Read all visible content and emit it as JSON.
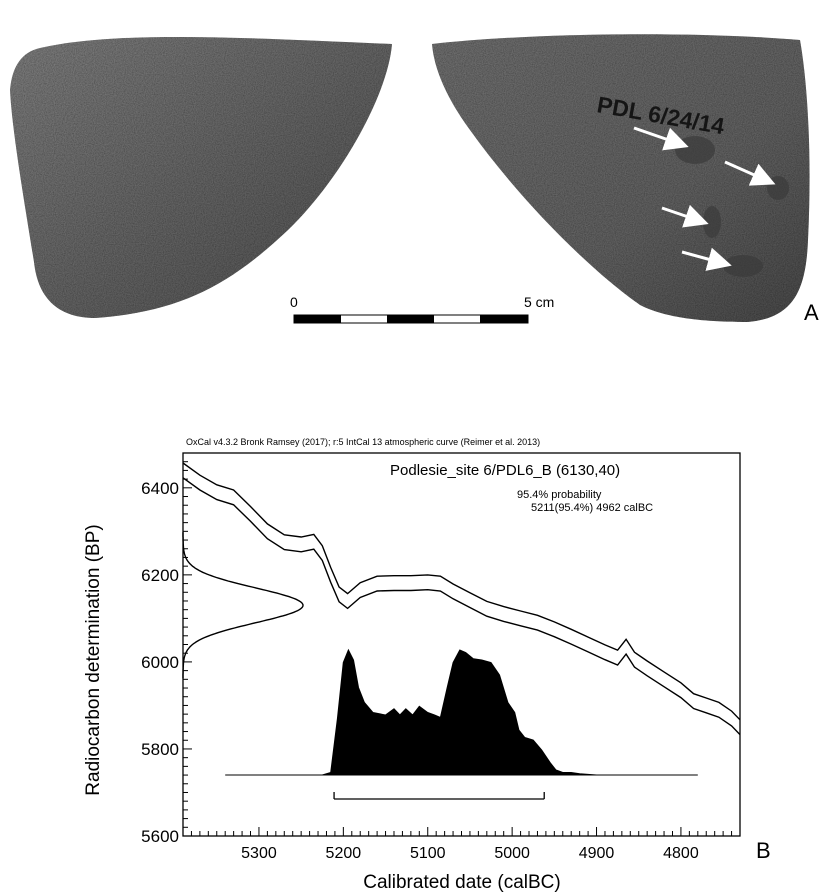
{
  "panels": {
    "a_letter": "A",
    "b_letter": "B"
  },
  "photo": {
    "specimen_label": "PDL 6/24/14",
    "scale_start": "0",
    "scale_end": "5 cm",
    "scale_length_cm": 5
  },
  "chart_data": {
    "type": "line",
    "caption": "OxCal v4.3.2 Bronk Ramsey (2017); r:5 IntCal 13 atmospheric curve (Reimer et al. 2013)",
    "sample_label": "Podlesie_site 6/PDL6_B (6130,40)",
    "probability_heading": "95.4% probability",
    "probability_range": "5211(95.4%) 4962 calBC",
    "range_95": [
      5211,
      4962
    ],
    "xlabel": "Calibrated date (calBC)",
    "ylabel": "Radiocarbon determination (BP)",
    "xlim": [
      5390,
      4730
    ],
    "ylim": [
      5600,
      6480
    ],
    "x_reversed": true,
    "x_ticks": [
      5300,
      5200,
      5100,
      5000,
      4900,
      4800
    ],
    "y_ticks": [
      5600,
      5800,
      6000,
      6200,
      6400
    ],
    "calibration_curve": {
      "x": [
        5390,
        5370,
        5350,
        5330,
        5310,
        5290,
        5270,
        5250,
        5235,
        5225,
        5215,
        5205,
        5195,
        5180,
        5160,
        5140,
        5120,
        5100,
        5085,
        5070,
        5050,
        5030,
        5010,
        4990,
        4970,
        4950,
        4930,
        4910,
        4890,
        4875,
        4865,
        4855,
        4840,
        4820,
        4800,
        4785,
        4770,
        4755,
        4740,
        4730
      ],
      "mean": [
        6440,
        6412,
        6390,
        6378,
        6340,
        6300,
        6275,
        6270,
        6276,
        6250,
        6200,
        6155,
        6140,
        6165,
        6180,
        6181,
        6181,
        6183,
        6180,
        6162,
        6142,
        6122,
        6110,
        6100,
        6090,
        6075,
        6058,
        6040,
        6022,
        6010,
        6035,
        6005,
        5985,
        5960,
        5935,
        5910,
        5900,
        5890,
        5870,
        5850
      ],
      "sigma": 17
    },
    "measurement": {
      "mean": 6130,
      "sigma": 40
    },
    "posterior_density": {
      "x": [
        5340,
        5225,
        5215,
        5207,
        5200,
        5194,
        5188,
        5182,
        5175,
        5165,
        5150,
        5140,
        5133,
        5126,
        5118,
        5110,
        5100,
        5092,
        5085,
        5077,
        5070,
        5062,
        5055,
        5046,
        5036,
        5025,
        5015,
        5005,
        4997,
        4992,
        4985,
        4975,
        4965,
        4955,
        4948,
        4940,
        4930,
        4920,
        4900,
        4780
      ],
      "y": [
        0,
        0,
        0.02,
        0.45,
        0.9,
        1.0,
        0.92,
        0.7,
        0.58,
        0.5,
        0.48,
        0.53,
        0.48,
        0.53,
        0.48,
        0.55,
        0.5,
        0.48,
        0.46,
        0.7,
        0.9,
        1.0,
        0.98,
        0.93,
        0.92,
        0.9,
        0.8,
        0.58,
        0.5,
        0.36,
        0.3,
        0.28,
        0.2,
        0.1,
        0.04,
        0.02,
        0.02,
        0.01,
        0,
        0
      ]
    }
  }
}
